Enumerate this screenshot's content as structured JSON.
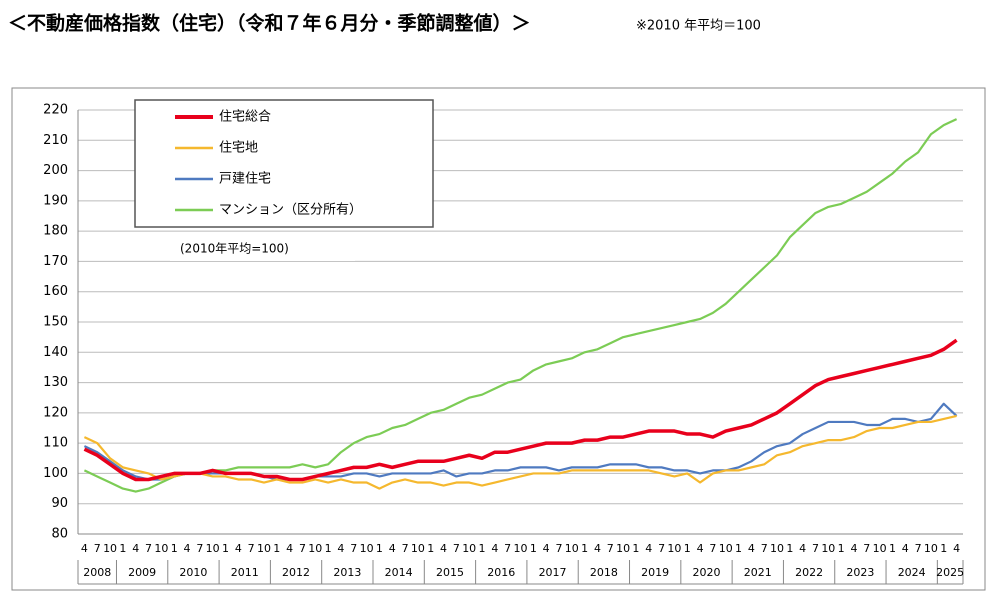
{
  "chart_data": {
    "type": "line",
    "title": "＜不動産価格指数（住宅）（令和７年６月分・季節調整値）＞",
    "subtitle": "※2010 年平均＝100",
    "note": "(2010年平均=100)",
    "categories": [
      "4",
      "7",
      "10",
      "1",
      "4",
      "7",
      "10",
      "1",
      "4",
      "7",
      "10",
      "1",
      "4",
      "7",
      "10",
      "1",
      "4",
      "7",
      "10",
      "1",
      "4",
      "7",
      "10",
      "1",
      "4",
      "7",
      "10",
      "1",
      "4",
      "7",
      "10",
      "1",
      "4",
      "7",
      "10",
      "1",
      "4",
      "7",
      "10",
      "1",
      "4",
      "7",
      "10",
      "1",
      "4",
      "7",
      "10",
      "1",
      "4",
      "7",
      "10",
      "1",
      "4",
      "7",
      "10",
      "1",
      "4",
      "7",
      "10",
      "1",
      "4",
      "7",
      "10",
      "1",
      "4",
      "7",
      "10",
      "1",
      "4"
    ],
    "years": [
      "2008",
      "2009",
      "2010",
      "2011",
      "2012",
      "2013",
      "2014",
      "2015",
      "2016",
      "2017",
      "2018",
      "2019",
      "2020",
      "2021",
      "2022",
      "2023",
      "2024",
      "2025"
    ],
    "ylim": [
      80,
      220
    ],
    "yticks": [
      80,
      90,
      100,
      110,
      120,
      130,
      140,
      150,
      160,
      170,
      180,
      190,
      200,
      210,
      220
    ],
    "grid": true,
    "series": [
      {
        "name": "住宅総合",
        "color": "#e8001c",
        "values": [
          108,
          106,
          103,
          100,
          98,
          98,
          99,
          100,
          100,
          100,
          101,
          100,
          100,
          100,
          99,
          99,
          98,
          98,
          99,
          100,
          101,
          102,
          102,
          103,
          102,
          103,
          104,
          104,
          104,
          105,
          106,
          105,
          107,
          107,
          108,
          109,
          110,
          110,
          110,
          111,
          111,
          112,
          112,
          113,
          114,
          114,
          114,
          113,
          113,
          112,
          114,
          115,
          116,
          118,
          120,
          123,
          126,
          129,
          131,
          132,
          133,
          134,
          135,
          136,
          137,
          138,
          139,
          141,
          144
        ]
      },
      {
        "name": "住宅地",
        "color": "#f5b82e",
        "values": [
          112,
          110,
          105,
          102,
          101,
          100,
          98,
          99,
          100,
          100,
          99,
          99,
          98,
          98,
          97,
          98,
          97,
          97,
          98,
          97,
          98,
          97,
          97,
          95,
          97,
          98,
          97,
          97,
          96,
          97,
          97,
          96,
          97,
          98,
          99,
          100,
          100,
          100,
          101,
          101,
          101,
          101,
          101,
          101,
          101,
          100,
          99,
          100,
          97,
          100,
          101,
          101,
          102,
          103,
          106,
          107,
          109,
          110,
          111,
          111,
          112,
          114,
          115,
          115,
          116,
          117,
          117,
          118,
          119
        ]
      },
      {
        "name": "戸建住宅",
        "color": "#4f7ac0",
        "values": [
          109,
          107,
          104,
          101,
          99,
          98,
          98,
          99,
          100,
          100,
          100,
          100,
          100,
          100,
          99,
          98,
          98,
          98,
          99,
          99,
          99,
          100,
          100,
          99,
          100,
          100,
          100,
          100,
          101,
          99,
          100,
          100,
          101,
          101,
          102,
          102,
          102,
          101,
          102,
          102,
          102,
          103,
          103,
          103,
          102,
          102,
          101,
          101,
          100,
          101,
          101,
          102,
          104,
          107,
          109,
          110,
          113,
          115,
          117,
          117,
          117,
          116,
          116,
          118,
          118,
          117,
          118,
          123,
          119
        ]
      },
      {
        "name": "マンション（区分所有）",
        "color": "#7ccc55",
        "values": [
          101,
          99,
          97,
          95,
          94,
          95,
          97,
          99,
          100,
          100,
          101,
          101,
          102,
          102,
          102,
          102,
          102,
          103,
          102,
          103,
          107,
          110,
          112,
          113,
          115,
          116,
          118,
          120,
          121,
          123,
          125,
          126,
          128,
          130,
          131,
          134,
          136,
          137,
          138,
          140,
          141,
          143,
          145,
          146,
          147,
          148,
          149,
          150,
          151,
          153,
          156,
          160,
          164,
          168,
          172,
          178,
          182,
          186,
          188,
          189,
          191,
          193,
          196,
          199,
          203,
          206,
          212,
          215,
          217
        ]
      }
    ]
  }
}
